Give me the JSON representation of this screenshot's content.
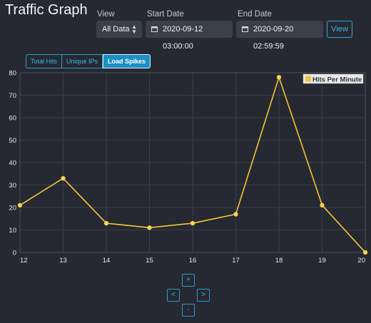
{
  "page": {
    "title": "Traffic Graph"
  },
  "controls": {
    "view_label": "View",
    "view_value": "All Data",
    "start_label": "Start Date",
    "start_value": "2020-09-12 03:00:00",
    "end_label": "End Date",
    "end_value": "2020-09-20 02:59:59",
    "view_button": "View"
  },
  "tabs": [
    {
      "label": "Total Hits",
      "active": false
    },
    {
      "label": "Unique IPs",
      "active": false
    },
    {
      "label": "Load Spikes",
      "active": true
    }
  ],
  "nav": {
    "up": "+",
    "left": "<",
    "right": ">",
    "down": "-"
  },
  "colors": {
    "accent": "#2ea8d6",
    "series": "#f0c53c",
    "background": "#262932"
  },
  "chart_data": {
    "type": "line",
    "x": [
      12,
      13,
      14,
      15,
      16,
      17,
      18,
      19,
      20
    ],
    "series": [
      {
        "name": "Hits Per Minute",
        "values": [
          21,
          33,
          13,
          11,
          13,
          17,
          78,
          21,
          0
        ]
      }
    ],
    "xlim": [
      12,
      20
    ],
    "ylim": [
      0,
      80
    ],
    "yticks": [
      0,
      10,
      20,
      30,
      40,
      50,
      60,
      70,
      80
    ],
    "grid": true,
    "legend": "top-right"
  }
}
